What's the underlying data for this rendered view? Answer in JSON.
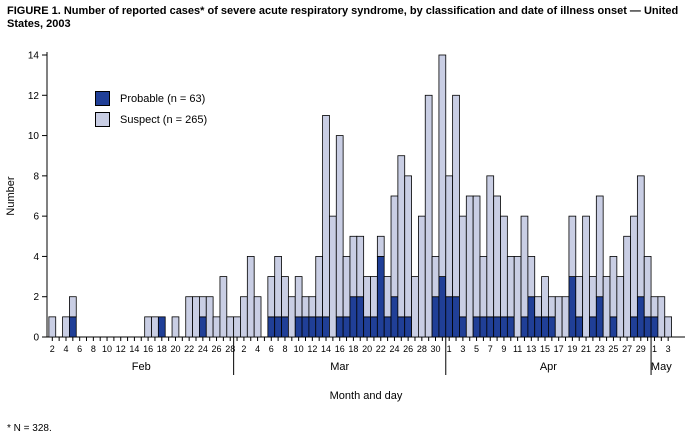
{
  "title": "FIGURE 1. Number of reported cases* of severe acute respiratory syndrome, by classification and date of illness onset — United States, 2003",
  "footnote": "* N = 328.",
  "legend": [
    {
      "label": "Probable (n = 63)",
      "color": "#203f97"
    },
    {
      "label": "Suspect (n = 265)",
      "color": "#c9cee4"
    }
  ],
  "colors": {
    "probable": "#203f97",
    "suspect": "#c9cee4",
    "outline": "#000000"
  },
  "chart_data": {
    "type": "bar",
    "stacked": true,
    "title": "FIGURE 1. Number of reported cases* of severe acute respiratory syndrome, by classification and date of illness onset — United States, 2003",
    "xlabel": "Month and day",
    "ylabel": "Number",
    "ylim": [
      0,
      14
    ],
    "yticks": [
      0,
      2,
      4,
      6,
      8,
      10,
      12,
      14
    ],
    "grid": false,
    "legend_position": "upper-left-inside",
    "series_names": [
      "Probable (n = 63)",
      "Suspect (n = 265)"
    ],
    "months": [
      {
        "name": "Feb",
        "first_day": 2,
        "last_day": 28,
        "label_parity": "even"
      },
      {
        "name": "Mar",
        "first_day": 1,
        "last_day": 31,
        "label_parity": "even"
      },
      {
        "name": "Apr",
        "first_day": 1,
        "last_day": 30,
        "label_parity": "odd"
      },
      {
        "name": "May",
        "first_day": 1,
        "last_day": 3,
        "label_parity": "odd"
      }
    ],
    "points_format": [
      "day",
      "probable",
      "suspect"
    ],
    "points": {
      "Feb": [
        [
          2,
          0,
          1
        ],
        [
          4,
          0,
          1
        ],
        [
          5,
          1,
          1
        ],
        [
          16,
          0,
          1
        ],
        [
          17,
          0,
          1
        ],
        [
          18,
          1,
          0
        ],
        [
          20,
          0,
          1
        ],
        [
          22,
          0,
          2
        ],
        [
          23,
          0,
          2
        ],
        [
          24,
          1,
          1
        ],
        [
          25,
          0,
          2
        ],
        [
          26,
          0,
          1
        ],
        [
          27,
          0,
          3
        ],
        [
          28,
          0,
          1
        ]
      ],
      "Mar": [
        [
          1,
          0,
          1
        ],
        [
          2,
          0,
          2
        ],
        [
          3,
          0,
          4
        ],
        [
          4,
          0,
          2
        ],
        [
          6,
          1,
          2
        ],
        [
          7,
          1,
          3
        ],
        [
          8,
          1,
          2
        ],
        [
          9,
          0,
          2
        ],
        [
          10,
          1,
          2
        ],
        [
          11,
          1,
          1
        ],
        [
          12,
          1,
          1
        ],
        [
          13,
          1,
          3
        ],
        [
          14,
          1,
          10
        ],
        [
          15,
          0,
          6
        ],
        [
          16,
          1,
          9
        ],
        [
          17,
          1,
          3
        ],
        [
          18,
          2,
          3
        ],
        [
          19,
          2,
          3
        ],
        [
          20,
          1,
          2
        ],
        [
          21,
          1,
          2
        ],
        [
          22,
          4,
          1
        ],
        [
          23,
          1,
          2
        ],
        [
          24,
          2,
          5
        ],
        [
          25,
          1,
          8
        ],
        [
          26,
          1,
          7
        ],
        [
          27,
          0,
          3
        ],
        [
          28,
          0,
          6
        ],
        [
          29,
          0,
          12
        ],
        [
          30,
          2,
          2
        ],
        [
          31,
          3,
          11
        ]
      ],
      "Apr": [
        [
          1,
          2,
          6
        ],
        [
          2,
          2,
          10
        ],
        [
          3,
          1,
          5
        ],
        [
          4,
          0,
          7
        ],
        [
          5,
          1,
          6
        ],
        [
          6,
          1,
          3
        ],
        [
          7,
          1,
          7
        ],
        [
          8,
          1,
          6
        ],
        [
          9,
          1,
          5
        ],
        [
          10,
          1,
          3
        ],
        [
          11,
          0,
          4
        ],
        [
          12,
          1,
          5
        ],
        [
          13,
          2,
          2
        ],
        [
          14,
          1,
          1
        ],
        [
          15,
          1,
          2
        ],
        [
          16,
          1,
          1
        ],
        [
          17,
          0,
          2
        ],
        [
          18,
          0,
          2
        ],
        [
          19,
          3,
          3
        ],
        [
          20,
          1,
          2
        ],
        [
          21,
          0,
          6
        ],
        [
          22,
          1,
          2
        ],
        [
          23,
          2,
          5
        ],
        [
          24,
          0,
          3
        ],
        [
          25,
          1,
          3
        ],
        [
          26,
          0,
          3
        ],
        [
          27,
          0,
          5
        ],
        [
          28,
          1,
          5
        ],
        [
          29,
          2,
          6
        ],
        [
          30,
          1,
          3
        ]
      ],
      "May": [
        [
          1,
          1,
          1
        ],
        [
          2,
          0,
          2
        ],
        [
          3,
          0,
          1
        ]
      ]
    },
    "totals": {
      "probable": 63,
      "suspect": 265,
      "all": 328
    }
  }
}
